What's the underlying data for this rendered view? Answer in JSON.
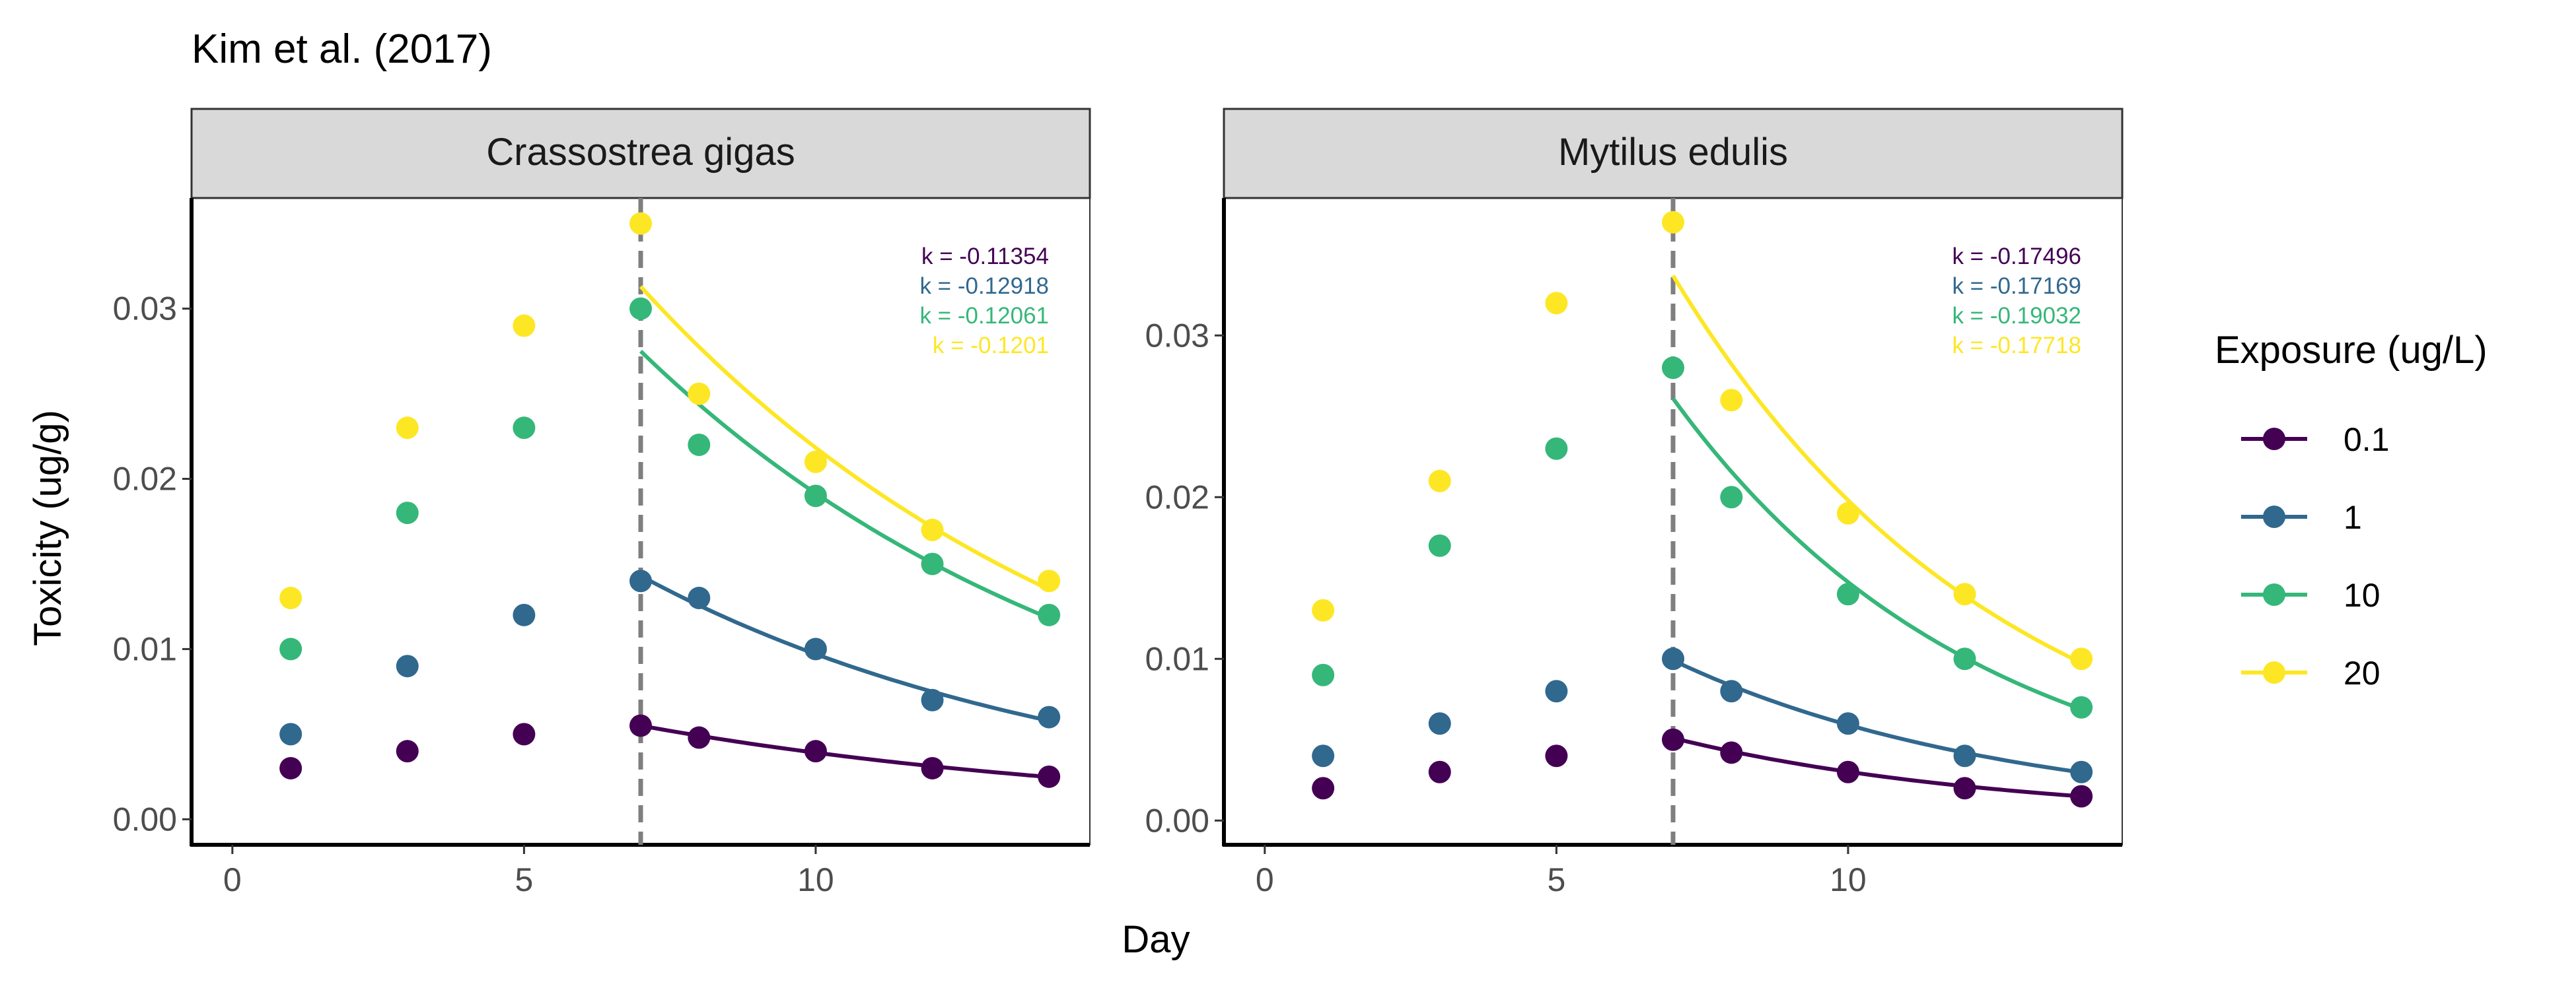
{
  "chart_data": {
    "type": "scatter",
    "title": "Kim et al. (2017)",
    "xlabel": "Day",
    "ylabel": "Toxicity (ug/g)",
    "legend": {
      "title": "Exposure (ug/L)",
      "placement": "right",
      "entries": [
        {
          "label": "0.1",
          "color": "#440154"
        },
        {
          "label": "1",
          "color": "#31688E"
        },
        {
          "label": "10",
          "color": "#35B779"
        },
        {
          "label": "20",
          "color": "#FDE725"
        }
      ]
    },
    "panels": [
      {
        "strip": "Crassostrea gigas",
        "xlim": [
          -0.7,
          14.7
        ],
        "ylim": [
          -0.0015,
          0.0365
        ],
        "yticks": [
          0,
          0.01,
          0.02,
          0.03
        ],
        "ytick_labels": [
          "0.00",
          "0.01",
          "0.02",
          "0.03"
        ],
        "xticks": [
          0,
          5,
          10
        ],
        "xtick_labels": [
          "0",
          "5",
          "10"
        ],
        "vline_x": 7,
        "grid": false,
        "series": [
          {
            "name": "0.1",
            "color": "#440154",
            "x": [
              1,
              3,
              5,
              7,
              8,
              10,
              12,
              14
            ],
            "y": [
              0.003,
              0.004,
              0.005,
              0.0055,
              0.0048,
              0.004,
              0.003,
              0.0025
            ],
            "fit": {
              "x0": 7,
              "y0": 0.0055,
              "k": -0.11354
            },
            "k_label": "k = -0.11354"
          },
          {
            "name": "1",
            "color": "#31688E",
            "x": [
              1,
              3,
              5,
              7,
              8,
              10,
              12,
              14
            ],
            "y": [
              0.005,
              0.009,
              0.012,
              0.014,
              0.013,
              0.01,
              0.007,
              0.006
            ],
            "fit": {
              "x0": 7,
              "y0": 0.0143,
              "k": -0.12918
            },
            "k_label": "k = -0.12918"
          },
          {
            "name": "10",
            "color": "#35B779",
            "x": [
              1,
              3,
              5,
              7,
              8,
              10,
              12,
              14
            ],
            "y": [
              0.01,
              0.018,
              0.023,
              0.03,
              0.022,
              0.019,
              0.015,
              0.012
            ],
            "fit": {
              "x0": 7,
              "y0": 0.0275,
              "k": -0.12061
            },
            "k_label": "k = -0.12061"
          },
          {
            "name": "20",
            "color": "#FDE725",
            "x": [
              1,
              3,
              5,
              7,
              8,
              10,
              12,
              14
            ],
            "y": [
              0.013,
              0.023,
              0.029,
              0.035,
              0.025,
              0.021,
              0.017,
              0.014
            ],
            "fit": {
              "x0": 7,
              "y0": 0.0313,
              "k": -0.1201
            },
            "k_label": "k = -0.1201"
          }
        ]
      },
      {
        "strip": "Mytilus edulis",
        "xlim": [
          -0.7,
          14.7
        ],
        "ylim": [
          -0.0015,
          0.0385
        ],
        "yticks": [
          0,
          0.01,
          0.02,
          0.03
        ],
        "ytick_labels": [
          "0.00",
          "0.01",
          "0.02",
          "0.03"
        ],
        "xticks": [
          0,
          5,
          10
        ],
        "xtick_labels": [
          "0",
          "5",
          "10"
        ],
        "vline_x": 7,
        "grid": false,
        "series": [
          {
            "name": "0.1",
            "color": "#440154",
            "x": [
              1,
              3,
              5,
              7,
              8,
              10,
              12,
              14
            ],
            "y": [
              0.002,
              0.003,
              0.004,
              0.005,
              0.0042,
              0.003,
              0.002,
              0.0015
            ],
            "fit": {
              "x0": 7,
              "y0": 0.0051,
              "k": -0.17496
            },
            "k_label": "k = -0.17496"
          },
          {
            "name": "1",
            "color": "#31688E",
            "x": [
              1,
              3,
              5,
              7,
              8,
              10,
              12,
              14
            ],
            "y": [
              0.004,
              0.006,
              0.008,
              0.01,
              0.008,
              0.006,
              0.004,
              0.003
            ],
            "fit": {
              "x0": 7,
              "y0": 0.0099,
              "k": -0.17169
            },
            "k_label": "k = -0.17169"
          },
          {
            "name": "10",
            "color": "#35B779",
            "x": [
              1,
              3,
              5,
              7,
              8,
              10,
              12,
              14
            ],
            "y": [
              0.009,
              0.017,
              0.023,
              0.028,
              0.02,
              0.014,
              0.01,
              0.007
            ],
            "fit": {
              "x0": 7,
              "y0": 0.0261,
              "k": -0.19032
            },
            "k_label": "k = -0.19032"
          },
          {
            "name": "20",
            "color": "#FDE725",
            "x": [
              1,
              3,
              5,
              7,
              8,
              10,
              12,
              14
            ],
            "y": [
              0.013,
              0.021,
              0.032,
              0.037,
              0.026,
              0.019,
              0.014,
              0.01
            ],
            "fit": {
              "x0": 7,
              "y0": 0.0337,
              "k": -0.17718
            },
            "k_label": "k = -0.17718"
          }
        ]
      }
    ]
  }
}
